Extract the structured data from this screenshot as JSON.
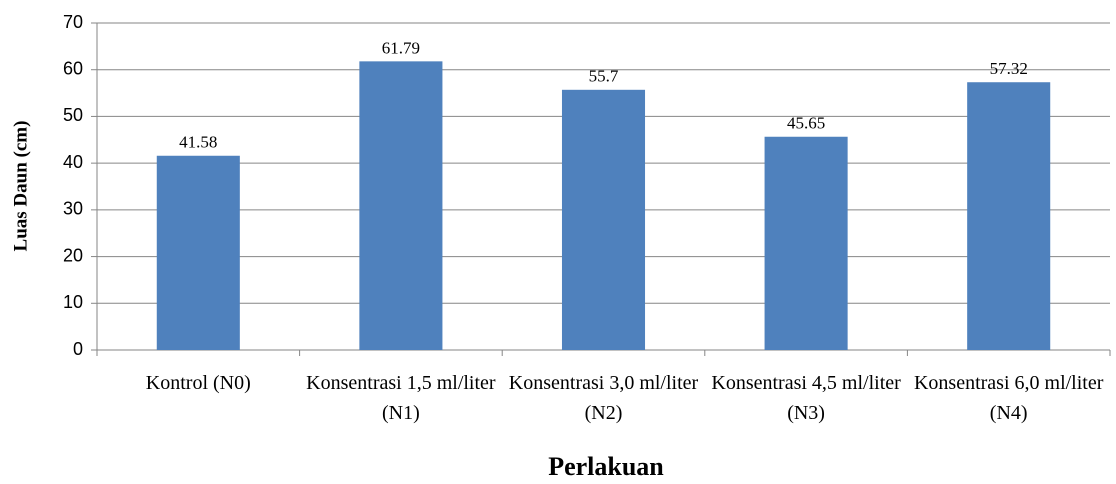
{
  "chart_data": {
    "type": "bar",
    "categories": [
      "Kontrol (N0)",
      "Konsentrasi 1,5 ml/liter (N1)",
      "Konsentrasi 3,0 ml/liter (N2)",
      "Konsentrasi 4,5 ml/liter (N3)",
      "Konsentrasi 6,0 ml/liter (N4)"
    ],
    "values": [
      41.58,
      61.79,
      55.7,
      45.65,
      57.32
    ],
    "color": "#4f81bd",
    "ylabel": "Luas Daun (cm)",
    "xlabel": "Perlakuan",
    "ylim": [
      0,
      70
    ],
    "yticks": [
      0,
      10,
      20,
      30,
      40,
      50,
      60,
      70
    ],
    "grid": true
  }
}
